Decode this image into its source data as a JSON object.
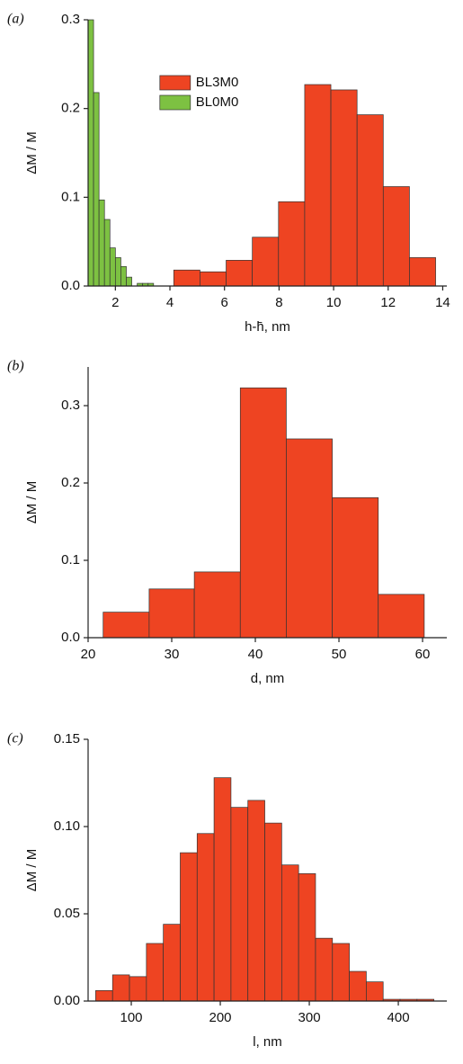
{
  "chart_data": [
    {
      "type": "histogram",
      "panel_label": "(a)",
      "xlabel": "h-h̄, nm",
      "ylabel": "ΔM / M",
      "xlim": [
        1,
        14.15
      ],
      "xticks": [
        2,
        4,
        6,
        8,
        10,
        12,
        14
      ],
      "ylim": [
        0,
        0.3
      ],
      "yticks": [
        {
          "value": 0,
          "label": "0.0"
        },
        0.1,
        0.2,
        0.3
      ],
      "legend": "upper center",
      "series": [
        {
          "name": "BL3M0",
          "color": "#ee4422",
          "bins": [
            4.14,
            5.1,
            6.06,
            7.02,
            7.98,
            8.94,
            9.9,
            10.86,
            11.82,
            12.78,
            13.74
          ],
          "values": [
            0.018,
            0.016,
            0.029,
            0.055,
            0.095,
            0.227,
            0.221,
            0.193,
            0.112,
            0.032
          ]
        },
        {
          "name": "BL0M0",
          "color": "#7dc142",
          "bins": [
            1.0,
            1.2,
            1.4,
            1.6,
            1.8,
            2.0,
            2.2,
            2.4,
            2.6,
            2.8,
            3.0,
            3.2,
            3.4
          ],
          "values": [
            0.3,
            0.218,
            0.097,
            0.075,
            0.043,
            0.032,
            0.022,
            0.01,
            0,
            0.003,
            0.003,
            0.003
          ]
        }
      ]
    },
    {
      "type": "histogram",
      "panel_label": "(b)",
      "xlabel": "d, nm",
      "ylabel": "ΔM / M",
      "xlim": [
        20,
        62.9
      ],
      "xticks": [
        20,
        30,
        40,
        50,
        60
      ],
      "ylim": [
        0,
        0.35
      ],
      "yticks": [
        {
          "value": 0,
          "label": "0.0"
        },
        0.1,
        0.2,
        0.3
      ],
      "series": [
        {
          "color": "#ee4422",
          "bins": [
            21.8,
            27.3,
            32.7,
            38.2,
            43.7,
            49.2,
            54.7,
            60.2
          ],
          "values": [
            0.033,
            0.063,
            0.085,
            0.323,
            0.257,
            0.181,
            0.056
          ]
        }
      ]
    },
    {
      "type": "histogram",
      "panel_label": "(c)",
      "xlabel": "l, nm",
      "ylabel": "ΔM / M",
      "xlim": [
        51.5,
        454.5
      ],
      "xticks": [
        100,
        200,
        300,
        400
      ],
      "ylim": [
        0,
        0.15
      ],
      "yticks": [
        {
          "value": 0,
          "label": "0.00"
        },
        0.05,
        {
          "value": 0.1,
          "label": "0.10"
        },
        0.15
      ],
      "series": [
        {
          "color": "#ee4422",
          "bins": [
            60,
            79,
            98,
            117,
            136,
            155,
            174,
            193,
            212,
            231,
            250,
            269,
            288,
            307,
            326,
            345,
            364,
            383,
            402,
            421,
            440
          ],
          "values": [
            0.006,
            0.015,
            0.014,
            0.033,
            0.044,
            0.085,
            0.096,
            0.128,
            0.111,
            0.115,
            0.102,
            0.078,
            0.073,
            0.036,
            0.033,
            0.017,
            0.011,
            0.001,
            0.001,
            0.001
          ]
        }
      ]
    }
  ]
}
